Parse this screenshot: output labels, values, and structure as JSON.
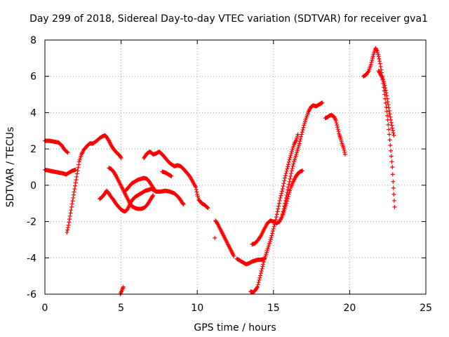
{
  "chart_data": {
    "type": "scatter",
    "title": "Day 299 of 2018, Sidereal Day-to-day VTEC variation (SDTVAR) for receiver gva1",
    "xlabel": "GPS time / hours",
    "ylabel": "SDTVAR / TECUs",
    "xlim": [
      0,
      25
    ],
    "ylim": [
      -6,
      8
    ],
    "xticks": [
      0,
      5,
      10,
      15,
      20,
      25
    ],
    "yticks": [
      -6,
      -4,
      -2,
      0,
      2,
      4,
      6,
      8
    ],
    "grid": true,
    "marker": "plus",
    "color": "#ff0000",
    "series": [
      {
        "segments": [
          [
            [
              0.0,
              2.45
            ],
            [
              0.3,
              2.45
            ],
            [
              0.6,
              2.4
            ],
            [
              0.9,
              2.35
            ],
            [
              1.1,
              2.2
            ],
            [
              1.3,
              1.95
            ],
            [
              1.5,
              1.8
            ]
          ],
          [
            [
              0.0,
              0.85
            ],
            [
              0.3,
              0.8
            ],
            [
              0.6,
              0.75
            ],
            [
              0.9,
              0.7
            ],
            [
              1.2,
              0.65
            ],
            [
              1.4,
              0.6
            ],
            [
              1.6,
              0.7
            ],
            [
              1.8,
              0.8
            ],
            [
              2.0,
              0.85
            ]
          ],
          [
            [
              1.45,
              -2.6
            ],
            [
              1.55,
              -2.2
            ],
            [
              1.65,
              -1.7
            ],
            [
              1.75,
              -1.2
            ],
            [
              1.85,
              -0.7
            ],
            [
              1.95,
              -0.2
            ],
            [
              2.05,
              0.3
            ],
            [
              2.15,
              0.8
            ],
            [
              2.25,
              1.3
            ],
            [
              2.4,
              1.7
            ],
            [
              2.55,
              1.95
            ],
            [
              2.75,
              2.15
            ],
            [
              2.95,
              2.3
            ],
            [
              3.15,
              2.3
            ],
            [
              3.4,
              2.45
            ],
            [
              3.6,
              2.6
            ],
            [
              3.8,
              2.7
            ],
            [
              3.95,
              2.75
            ],
            [
              4.05,
              2.65
            ],
            [
              4.2,
              2.45
            ],
            [
              4.35,
              2.2
            ],
            [
              4.5,
              2.0
            ],
            [
              4.7,
              1.8
            ],
            [
              4.9,
              1.65
            ],
            [
              5.0,
              1.5
            ]
          ],
          [
            [
              3.6,
              -0.75
            ],
            [
              3.75,
              -0.65
            ],
            [
              3.9,
              -0.5
            ],
            [
              4.05,
              -0.3
            ],
            [
              4.2,
              -0.45
            ],
            [
              4.35,
              -0.65
            ],
            [
              4.5,
              -0.8
            ],
            [
              4.65,
              -1.0
            ],
            [
              4.8,
              -1.15
            ],
            [
              4.95,
              -1.3
            ],
            [
              5.1,
              -1.4
            ],
            [
              5.25,
              -1.45
            ],
            [
              5.4,
              -1.35
            ],
            [
              5.55,
              -1.1
            ],
            [
              5.7,
              -0.85
            ],
            [
              5.85,
              -0.7
            ],
            [
              6.0,
              -0.6
            ],
            [
              6.2,
              -0.5
            ],
            [
              6.4,
              -0.4
            ],
            [
              6.6,
              -0.3
            ],
            [
              6.8,
              -0.25
            ],
            [
              7.0,
              -0.2
            ],
            [
              7.3,
              -0.35
            ],
            [
              7.6,
              -0.35
            ],
            [
              7.9,
              -0.3
            ],
            [
              8.2,
              -0.35
            ],
            [
              8.5,
              -0.45
            ],
            [
              8.7,
              -0.6
            ],
            [
              8.85,
              -0.75
            ],
            [
              9.0,
              -0.95
            ],
            [
              9.1,
              -1.05
            ]
          ],
          [
            [
              4.2,
              0.95
            ],
            [
              4.35,
              0.9
            ],
            [
              4.5,
              0.75
            ],
            [
              4.65,
              0.55
            ],
            [
              4.8,
              0.3
            ],
            [
              4.95,
              0.05
            ],
            [
              5.1,
              -0.2
            ],
            [
              5.25,
              -0.45
            ],
            [
              5.4,
              -0.7
            ],
            [
              5.55,
              -0.95
            ],
            [
              5.7,
              -1.15
            ],
            [
              5.9,
              -1.25
            ],
            [
              6.1,
              -1.3
            ],
            [
              6.3,
              -1.3
            ],
            [
              6.5,
              -1.25
            ],
            [
              6.7,
              -1.1
            ],
            [
              6.85,
              -0.9
            ],
            [
              7.0,
              -0.7
            ],
            [
              7.1,
              -0.55
            ]
          ],
          [
            [
              4.95,
              -6.0
            ],
            [
              5.05,
              -5.8
            ],
            [
              5.15,
              -5.6
            ]
          ],
          [
            [
              5.3,
              -0.3
            ],
            [
              5.5,
              -0.1
            ],
            [
              5.7,
              0.1
            ],
            [
              5.9,
              0.2
            ],
            [
              6.1,
              0.3
            ],
            [
              6.3,
              0.35
            ],
            [
              6.5,
              0.4
            ],
            [
              6.7,
              0.35
            ],
            [
              6.85,
              0.2
            ],
            [
              7.0,
              0.0
            ],
            [
              7.15,
              -0.2
            ],
            [
              7.3,
              -0.35
            ]
          ],
          [
            [
              6.5,
              1.5
            ],
            [
              6.7,
              1.75
            ],
            [
              6.9,
              1.85
            ],
            [
              7.1,
              1.7
            ],
            [
              7.3,
              1.75
            ],
            [
              7.5,
              1.85
            ],
            [
              7.7,
              1.7
            ],
            [
              7.9,
              1.5
            ],
            [
              8.1,
              1.3
            ],
            [
              8.3,
              1.15
            ],
            [
              8.5,
              1.05
            ],
            [
              8.7,
              1.1
            ],
            [
              8.9,
              1.05
            ],
            [
              9.1,
              0.9
            ],
            [
              9.3,
              0.7
            ],
            [
              9.5,
              0.5
            ],
            [
              9.7,
              0.2
            ],
            [
              9.9,
              -0.1
            ],
            [
              10.0,
              -0.5
            ],
            [
              10.1,
              -0.8
            ],
            [
              10.3,
              -1.0
            ],
            [
              10.5,
              -1.1
            ],
            [
              10.7,
              -1.25
            ]
          ],
          [
            [
              7.7,
              0.75
            ],
            [
              7.9,
              0.7
            ],
            [
              8.1,
              0.6
            ],
            [
              8.3,
              0.5
            ]
          ],
          [
            [
              11.15,
              -2.9
            ]
          ],
          [
            [
              11.2,
              -1.95
            ],
            [
              11.35,
              -2.15
            ],
            [
              11.5,
              -2.4
            ],
            [
              11.65,
              -2.65
            ],
            [
              11.8,
              -2.9
            ],
            [
              11.95,
              -3.15
            ],
            [
              12.1,
              -3.4
            ],
            [
              12.25,
              -3.65
            ],
            [
              12.4,
              -3.9
            ]
          ],
          [
            [
              12.6,
              -4.05
            ],
            [
              12.8,
              -4.15
            ],
            [
              13.0,
              -4.25
            ],
            [
              13.2,
              -4.35
            ],
            [
              13.4,
              -4.3
            ],
            [
              13.6,
              -4.2
            ],
            [
              13.8,
              -4.15
            ],
            [
              14.0,
              -4.1
            ],
            [
              14.2,
              -4.1
            ],
            [
              14.4,
              -4.05
            ]
          ],
          [
            [
              13.5,
              -5.85
            ],
            [
              13.65,
              -5.9
            ],
            [
              13.8,
              -5.8
            ],
            [
              13.95,
              -5.6
            ],
            [
              14.1,
              -5.1
            ],
            [
              14.25,
              -4.6
            ],
            [
              14.4,
              -4.1
            ],
            [
              14.55,
              -3.7
            ],
            [
              14.7,
              -3.3
            ],
            [
              14.85,
              -2.9
            ],
            [
              15.0,
              -2.4
            ],
            [
              15.15,
              -1.9
            ],
            [
              15.3,
              -1.3
            ],
            [
              15.45,
              -0.7
            ],
            [
              15.6,
              -0.2
            ],
            [
              15.75,
              0.4
            ],
            [
              15.9,
              0.9
            ],
            [
              16.05,
              1.4
            ],
            [
              16.2,
              1.85
            ],
            [
              16.35,
              2.25
            ],
            [
              16.5,
              2.5
            ],
            [
              16.6,
              2.8
            ]
          ],
          [
            [
              13.6,
              -3.25
            ],
            [
              13.8,
              -3.2
            ],
            [
              14.0,
              -3.0
            ],
            [
              14.2,
              -2.75
            ],
            [
              14.4,
              -2.4
            ],
            [
              14.6,
              -2.1
            ],
            [
              14.8,
              -1.95
            ],
            [
              15.0,
              -2.0
            ],
            [
              15.2,
              -2.1
            ],
            [
              15.4,
              -2.0
            ],
            [
              15.55,
              -1.75
            ],
            [
              15.7,
              -1.4
            ],
            [
              15.85,
              -1.0
            ],
            [
              16.0,
              -0.5
            ],
            [
              16.15,
              -0.1
            ],
            [
              16.3,
              0.2
            ],
            [
              16.45,
              0.45
            ],
            [
              16.6,
              0.65
            ],
            [
              16.75,
              0.75
            ],
            [
              16.9,
              0.8
            ]
          ],
          [
            [
              15.6,
              -1.6
            ],
            [
              15.75,
              -1.0
            ],
            [
              15.9,
              -0.4
            ],
            [
              16.05,
              0.2
            ],
            [
              16.2,
              0.8
            ],
            [
              16.35,
              1.3
            ],
            [
              16.5,
              1.7
            ],
            [
              16.6,
              2.0
            ],
            [
              16.7,
              2.3
            ],
            [
              16.85,
              2.8
            ],
            [
              17.0,
              3.3
            ],
            [
              17.15,
              3.7
            ],
            [
              17.3,
              4.05
            ],
            [
              17.45,
              4.3
            ],
            [
              17.6,
              4.4
            ],
            [
              17.8,
              4.35
            ],
            [
              18.0,
              4.45
            ],
            [
              18.2,
              4.55
            ]
          ],
          [
            [
              18.4,
              3.7
            ],
            [
              18.55,
              3.75
            ],
            [
              18.7,
              3.85
            ],
            [
              18.85,
              3.85
            ],
            [
              19.0,
              3.75
            ],
            [
              19.1,
              3.55
            ],
            [
              19.2,
              3.2
            ],
            [
              19.3,
              2.85
            ],
            [
              19.4,
              2.6
            ],
            [
              19.5,
              2.3
            ],
            [
              19.6,
              2.05
            ],
            [
              19.7,
              1.7
            ]
          ],
          [
            [
              20.9,
              6.0
            ],
            [
              21.1,
              6.1
            ],
            [
              21.25,
              6.3
            ],
            [
              21.4,
              6.65
            ],
            [
              21.5,
              7.0
            ],
            [
              21.6,
              7.3
            ],
            [
              21.7,
              7.55
            ],
            [
              21.8,
              7.4
            ],
            [
              21.9,
              7.1
            ],
            [
              22.0,
              6.7
            ],
            [
              22.1,
              6.2
            ],
            [
              22.2,
              5.6
            ],
            [
              22.3,
              5.0
            ],
            [
              22.4,
              4.3
            ],
            [
              22.5,
              3.6
            ],
            [
              22.6,
              2.8
            ],
            [
              22.7,
              1.9
            ],
            [
              22.8,
              1.0
            ],
            [
              22.85,
              0.2
            ],
            [
              22.9,
              -0.5
            ],
            [
              22.95,
              -1.2
            ]
          ],
          [
            [
              21.9,
              6.3
            ],
            [
              22.0,
              6.15
            ],
            [
              22.1,
              6.0
            ],
            [
              22.2,
              5.8
            ],
            [
              22.3,
              5.5
            ],
            [
              22.4,
              5.1
            ],
            [
              22.5,
              4.6
            ],
            [
              22.6,
              4.1
            ],
            [
              22.7,
              3.6
            ],
            [
              22.8,
              3.15
            ],
            [
              22.9,
              2.75
            ]
          ]
        ]
      }
    ]
  }
}
